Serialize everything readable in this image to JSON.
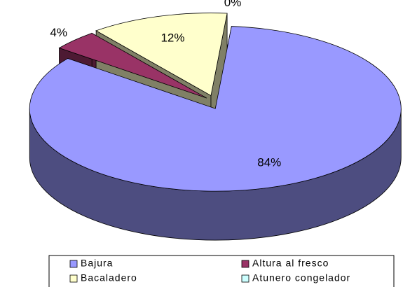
{
  "chart_data": {
    "type": "pie",
    "categories": [
      "Bajura",
      "Altura al fresco",
      "Bacaladero",
      "Atunero congelador"
    ],
    "values": [
      84,
      4,
      12,
      0
    ],
    "value_labels": [
      "84%",
      "4%",
      "12%",
      "0%"
    ],
    "colors": [
      "#9999ff",
      "#993366",
      "#ffffcc",
      "#ccffff"
    ],
    "legend": "bottom"
  }
}
